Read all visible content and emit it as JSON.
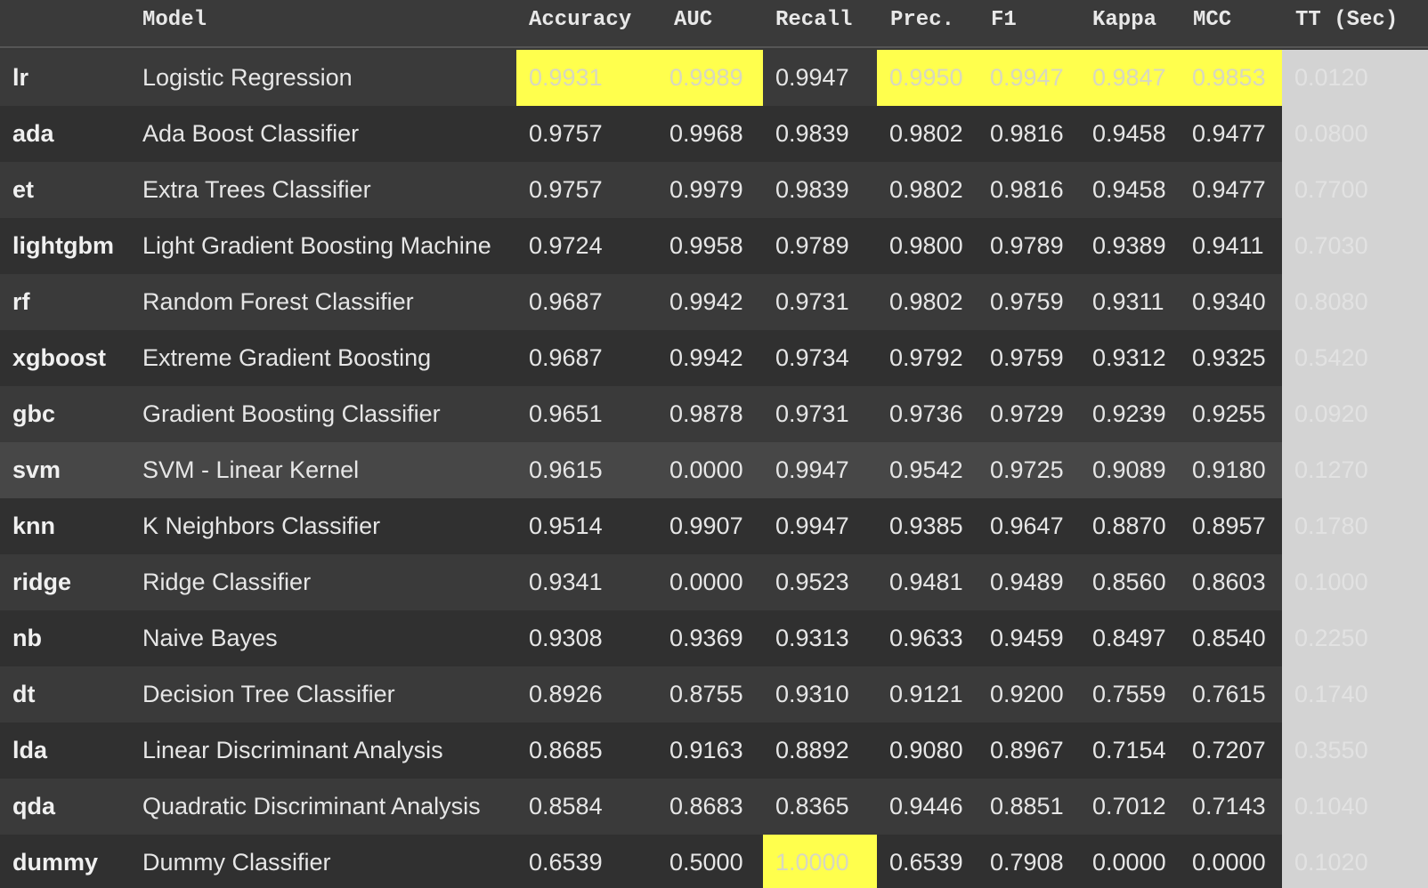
{
  "table": {
    "columns": [
      "",
      "Model",
      "Accuracy",
      "AUC",
      "Recall",
      "Prec.",
      "F1",
      "Kappa",
      "MCC",
      "TT (Sec)"
    ],
    "rows": [
      {
        "id": "lr",
        "model": "Logistic Regression",
        "accuracy": "0.9931",
        "auc": "0.9989",
        "recall": "0.9947",
        "prec": "0.9950",
        "f1": "0.9947",
        "kappa": "0.9847",
        "mcc": "0.9853",
        "tt": "0.0120"
      },
      {
        "id": "ada",
        "model": "Ada Boost Classifier",
        "accuracy": "0.9757",
        "auc": "0.9968",
        "recall": "0.9839",
        "prec": "0.9802",
        "f1": "0.9816",
        "kappa": "0.9458",
        "mcc": "0.9477",
        "tt": "0.0800"
      },
      {
        "id": "et",
        "model": "Extra Trees Classifier",
        "accuracy": "0.9757",
        "auc": "0.9979",
        "recall": "0.9839",
        "prec": "0.9802",
        "f1": "0.9816",
        "kappa": "0.9458",
        "mcc": "0.9477",
        "tt": "0.7700"
      },
      {
        "id": "lightgbm",
        "model": "Light Gradient Boosting Machine",
        "accuracy": "0.9724",
        "auc": "0.9958",
        "recall": "0.9789",
        "prec": "0.9800",
        "f1": "0.9789",
        "kappa": "0.9389",
        "mcc": "0.9411",
        "tt": "0.7030"
      },
      {
        "id": "rf",
        "model": "Random Forest Classifier",
        "accuracy": "0.9687",
        "auc": "0.9942",
        "recall": "0.9731",
        "prec": "0.9802",
        "f1": "0.9759",
        "kappa": "0.9311",
        "mcc": "0.9340",
        "tt": "0.8080"
      },
      {
        "id": "xgboost",
        "model": "Extreme Gradient Boosting",
        "accuracy": "0.9687",
        "auc": "0.9942",
        "recall": "0.9734",
        "prec": "0.9792",
        "f1": "0.9759",
        "kappa": "0.9312",
        "mcc": "0.9325",
        "tt": "0.5420"
      },
      {
        "id": "gbc",
        "model": "Gradient Boosting Classifier",
        "accuracy": "0.9651",
        "auc": "0.9878",
        "recall": "0.9731",
        "prec": "0.9736",
        "f1": "0.9729",
        "kappa": "0.9239",
        "mcc": "0.9255",
        "tt": "0.0920"
      },
      {
        "id": "svm",
        "model": "SVM - Linear Kernel",
        "accuracy": "0.9615",
        "auc": "0.0000",
        "recall": "0.9947",
        "prec": "0.9542",
        "f1": "0.9725",
        "kappa": "0.9089",
        "mcc": "0.9180",
        "tt": "0.1270"
      },
      {
        "id": "knn",
        "model": "K Neighbors Classifier",
        "accuracy": "0.9514",
        "auc": "0.9907",
        "recall": "0.9947",
        "prec": "0.9385",
        "f1": "0.9647",
        "kappa": "0.8870",
        "mcc": "0.8957",
        "tt": "0.1780"
      },
      {
        "id": "ridge",
        "model": "Ridge Classifier",
        "accuracy": "0.9341",
        "auc": "0.0000",
        "recall": "0.9523",
        "prec": "0.9481",
        "f1": "0.9489",
        "kappa": "0.8560",
        "mcc": "0.8603",
        "tt": "0.1000"
      },
      {
        "id": "nb",
        "model": "Naive Bayes",
        "accuracy": "0.9308",
        "auc": "0.9369",
        "recall": "0.9313",
        "prec": "0.9633",
        "f1": "0.9459",
        "kappa": "0.8497",
        "mcc": "0.8540",
        "tt": "0.2250"
      },
      {
        "id": "dt",
        "model": "Decision Tree Classifier",
        "accuracy": "0.8926",
        "auc": "0.8755",
        "recall": "0.9310",
        "prec": "0.9121",
        "f1": "0.9200",
        "kappa": "0.7559",
        "mcc": "0.7615",
        "tt": "0.1740"
      },
      {
        "id": "lda",
        "model": "Linear Discriminant Analysis",
        "accuracy": "0.8685",
        "auc": "0.9163",
        "recall": "0.8892",
        "prec": "0.9080",
        "f1": "0.8967",
        "kappa": "0.7154",
        "mcc": "0.7207",
        "tt": "0.3550"
      },
      {
        "id": "qda",
        "model": "Quadratic Discriminant Analysis",
        "accuracy": "0.8584",
        "auc": "0.8683",
        "recall": "0.8365",
        "prec": "0.9446",
        "f1": "0.8851",
        "kappa": "0.7012",
        "mcc": "0.7143",
        "tt": "0.1040"
      },
      {
        "id": "dummy",
        "model": "Dummy Classifier",
        "accuracy": "0.6539",
        "auc": "0.5000",
        "recall": "1.0000",
        "prec": "0.6539",
        "f1": "0.7908",
        "kappa": "0.0000",
        "mcc": "0.0000",
        "tt": "0.1020"
      }
    ],
    "highlights": [
      {
        "row": "lr",
        "cols": [
          "accuracy",
          "auc",
          "prec",
          "f1",
          "kappa",
          "mcc"
        ]
      },
      {
        "row": "dummy",
        "cols": [
          "recall"
        ]
      }
    ],
    "colors": {
      "highlight": "#ffff4d",
      "tt_column": "#d3d3d3"
    }
  }
}
